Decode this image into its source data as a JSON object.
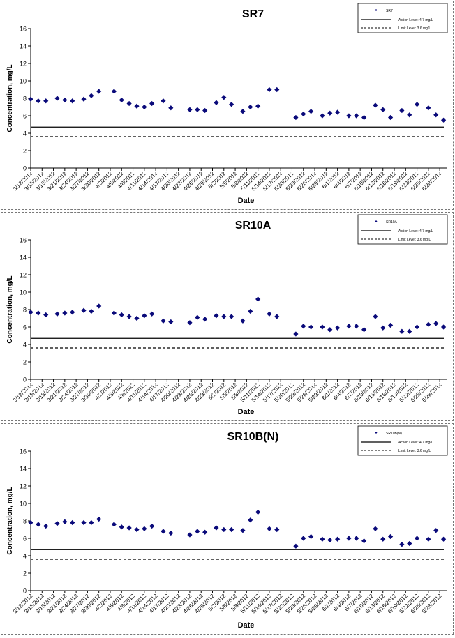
{
  "dates": [
    "3/12/2012",
    "3/15/2012",
    "3/18/2012",
    "3/21/2012",
    "3/24/2012",
    "3/27/2012",
    "3/30/2012",
    "4/2/2012",
    "4/5/2012",
    "4/8/2012",
    "4/11/2012",
    "4/14/2012",
    "4/17/2012",
    "4/20/2012",
    "4/23/2012",
    "4/26/2012",
    "4/29/2012",
    "5/2/2012",
    "5/5/2012",
    "5/8/2012",
    "5/11/2012",
    "5/14/2012",
    "5/17/2012",
    "5/20/2012",
    "5/23/2012",
    "5/26/2012",
    "5/29/2012",
    "6/1/2012",
    "6/4/2012",
    "6/7/2012",
    "6/10/2012",
    "6/13/2012",
    "6/16/2012",
    "6/19/2012",
    "6/22/2012",
    "6/25/2012",
    "6/28/2012"
  ],
  "colors": {
    "series": "#0a0a7a",
    "line": "#000000"
  },
  "chart_data": [
    {
      "type": "scatter",
      "title": "SR7",
      "xlabel": "Date",
      "ylabel": "Concentration, mg/L",
      "ylim": [
        0,
        16
      ],
      "yticks": [
        0,
        2,
        4,
        6,
        8,
        10,
        12,
        14,
        16
      ],
      "xlim": [
        "3/12/2012",
        "6/30/2012"
      ],
      "grid": false,
      "legend_position": "top-right",
      "legend": [
        "SR7",
        "Action Level: 4.7 mg/L",
        "Limit Level: 3.6 mg/L"
      ],
      "reference_lines": [
        {
          "value": 4.7,
          "style": "solid"
        },
        {
          "value": 3.6,
          "style": "dashed"
        }
      ],
      "series": [
        {
          "name": "SR7",
          "x": [
            "3/12/2012",
            "3/14/2012",
            "3/16/2012",
            "3/19/2012",
            "3/21/2012",
            "3/23/2012",
            "3/26/2012",
            "3/28/2012",
            "3/30/2012",
            "4/3/2012",
            "4/5/2012",
            "4/7/2012",
            "4/9/2012",
            "4/11/2012",
            "4/13/2012",
            "4/16/2012",
            "4/18/2012",
            "4/23/2012",
            "4/25/2012",
            "4/27/2012",
            "4/30/2012",
            "5/2/2012",
            "5/4/2012",
            "5/7/2012",
            "5/9/2012",
            "5/11/2012",
            "5/14/2012",
            "5/16/2012",
            "5/21/2012",
            "5/23/2012",
            "5/25/2012",
            "5/28/2012",
            "5/30/2012",
            "6/1/2012",
            "6/4/2012",
            "6/6/2012",
            "6/8/2012",
            "6/11/2012",
            "6/13/2012",
            "6/15/2012",
            "6/18/2012",
            "6/20/2012",
            "6/22/2012",
            "6/25/2012",
            "6/27/2012",
            "6/29/2012"
          ],
          "y": [
            7.9,
            7.7,
            7.7,
            8.0,
            7.8,
            7.7,
            7.9,
            8.3,
            8.8,
            8.8,
            7.8,
            7.4,
            7.1,
            7.0,
            7.4,
            7.7,
            6.9,
            6.7,
            6.7,
            6.6,
            7.5,
            8.1,
            7.3,
            6.5,
            7.0,
            7.1,
            9.0,
            9.0,
            5.8,
            6.2,
            6.5,
            6.0,
            6.3,
            6.4,
            6.0,
            6.0,
            5.8,
            7.2,
            6.7,
            5.8,
            6.6,
            6.1,
            7.3,
            6.9,
            6.1,
            5.5
          ]
        }
      ]
    },
    {
      "type": "scatter",
      "title": "SR10A",
      "xlabel": "Date",
      "ylabel": "Concentration, mg/L",
      "ylim": [
        0,
        16
      ],
      "yticks": [
        0,
        2,
        4,
        6,
        8,
        10,
        12,
        14,
        16
      ],
      "xlim": [
        "3/12/2012",
        "6/30/2012"
      ],
      "grid": false,
      "legend_position": "top-right",
      "legend": [
        "SR10A",
        "Action Level: 4.7 mg/L",
        "Limit Level: 3.6 mg/L"
      ],
      "reference_lines": [
        {
          "value": 4.7,
          "style": "solid"
        },
        {
          "value": 3.6,
          "style": "dashed"
        }
      ],
      "series": [
        {
          "name": "SR10A",
          "x": [
            "3/12/2012",
            "3/14/2012",
            "3/16/2012",
            "3/19/2012",
            "3/21/2012",
            "3/23/2012",
            "3/26/2012",
            "3/28/2012",
            "3/30/2012",
            "4/3/2012",
            "4/5/2012",
            "4/7/2012",
            "4/9/2012",
            "4/11/2012",
            "4/13/2012",
            "4/16/2012",
            "4/18/2012",
            "4/23/2012",
            "4/25/2012",
            "4/27/2012",
            "4/30/2012",
            "5/2/2012",
            "5/4/2012",
            "5/7/2012",
            "5/9/2012",
            "5/11/2012",
            "5/14/2012",
            "5/16/2012",
            "5/21/2012",
            "5/23/2012",
            "5/25/2012",
            "5/28/2012",
            "5/30/2012",
            "6/1/2012",
            "6/4/2012",
            "6/6/2012",
            "6/8/2012",
            "6/11/2012",
            "6/13/2012",
            "6/15/2012",
            "6/18/2012",
            "6/20/2012",
            "6/22/2012",
            "6/25/2012",
            "6/27/2012",
            "6/29/2012"
          ],
          "y": [
            7.7,
            7.6,
            7.4,
            7.5,
            7.6,
            7.7,
            7.9,
            7.8,
            8.4,
            7.6,
            7.4,
            7.2,
            7.0,
            7.3,
            7.5,
            6.7,
            6.6,
            6.5,
            7.1,
            6.9,
            7.3,
            7.2,
            7.2,
            6.7,
            7.8,
            9.2,
            7.5,
            7.2,
            5.2,
            6.1,
            6.0,
            6.0,
            5.7,
            5.9,
            6.1,
            6.1,
            5.7,
            7.2,
            5.9,
            6.2,
            5.5,
            5.5,
            6.0,
            6.3,
            6.4,
            6.0
          ]
        }
      ]
    },
    {
      "type": "scatter",
      "title": "SR10B(N)",
      "xlabel": "Date",
      "ylabel": "Concentration, mg/L",
      "ylim": [
        0,
        16
      ],
      "yticks": [
        0,
        2,
        4,
        6,
        8,
        10,
        12,
        14,
        16
      ],
      "xlim": [
        "3/12/2012",
        "6/30/2012"
      ],
      "grid": false,
      "legend_position": "top-right",
      "legend": [
        "SR10B(N)",
        "Action Level: 4.7 mg/L",
        "Limit Level: 3.6 mg/L"
      ],
      "reference_lines": [
        {
          "value": 4.7,
          "style": "solid"
        },
        {
          "value": 3.6,
          "style": "dashed"
        }
      ],
      "series": [
        {
          "name": "SR10B(N)",
          "x": [
            "3/12/2012",
            "3/14/2012",
            "3/16/2012",
            "3/19/2012",
            "3/21/2012",
            "3/23/2012",
            "3/26/2012",
            "3/28/2012",
            "3/30/2012",
            "4/3/2012",
            "4/5/2012",
            "4/7/2012",
            "4/9/2012",
            "4/11/2012",
            "4/13/2012",
            "4/16/2012",
            "4/18/2012",
            "4/23/2012",
            "4/25/2012",
            "4/27/2012",
            "4/30/2012",
            "5/2/2012",
            "5/4/2012",
            "5/7/2012",
            "5/9/2012",
            "5/11/2012",
            "5/14/2012",
            "5/16/2012",
            "5/21/2012",
            "5/23/2012",
            "5/25/2012",
            "5/28/2012",
            "5/30/2012",
            "6/1/2012",
            "6/4/2012",
            "6/6/2012",
            "6/8/2012",
            "6/11/2012",
            "6/13/2012",
            "6/15/2012",
            "6/18/2012",
            "6/20/2012",
            "6/22/2012",
            "6/25/2012",
            "6/27/2012",
            "6/29/2012"
          ],
          "y": [
            7.8,
            7.6,
            7.4,
            7.7,
            7.9,
            7.8,
            7.8,
            7.8,
            8.2,
            7.6,
            7.3,
            7.2,
            7.0,
            7.1,
            7.4,
            6.8,
            6.6,
            6.4,
            6.8,
            6.7,
            7.2,
            7.0,
            7.0,
            6.9,
            8.1,
            9.0,
            7.1,
            7.0,
            5.1,
            6.0,
            6.2,
            5.9,
            5.8,
            5.9,
            6.0,
            6.0,
            5.7,
            7.1,
            5.9,
            6.2,
            5.3,
            5.4,
            6.0,
            5.9,
            6.9,
            5.9
          ]
        }
      ]
    }
  ]
}
